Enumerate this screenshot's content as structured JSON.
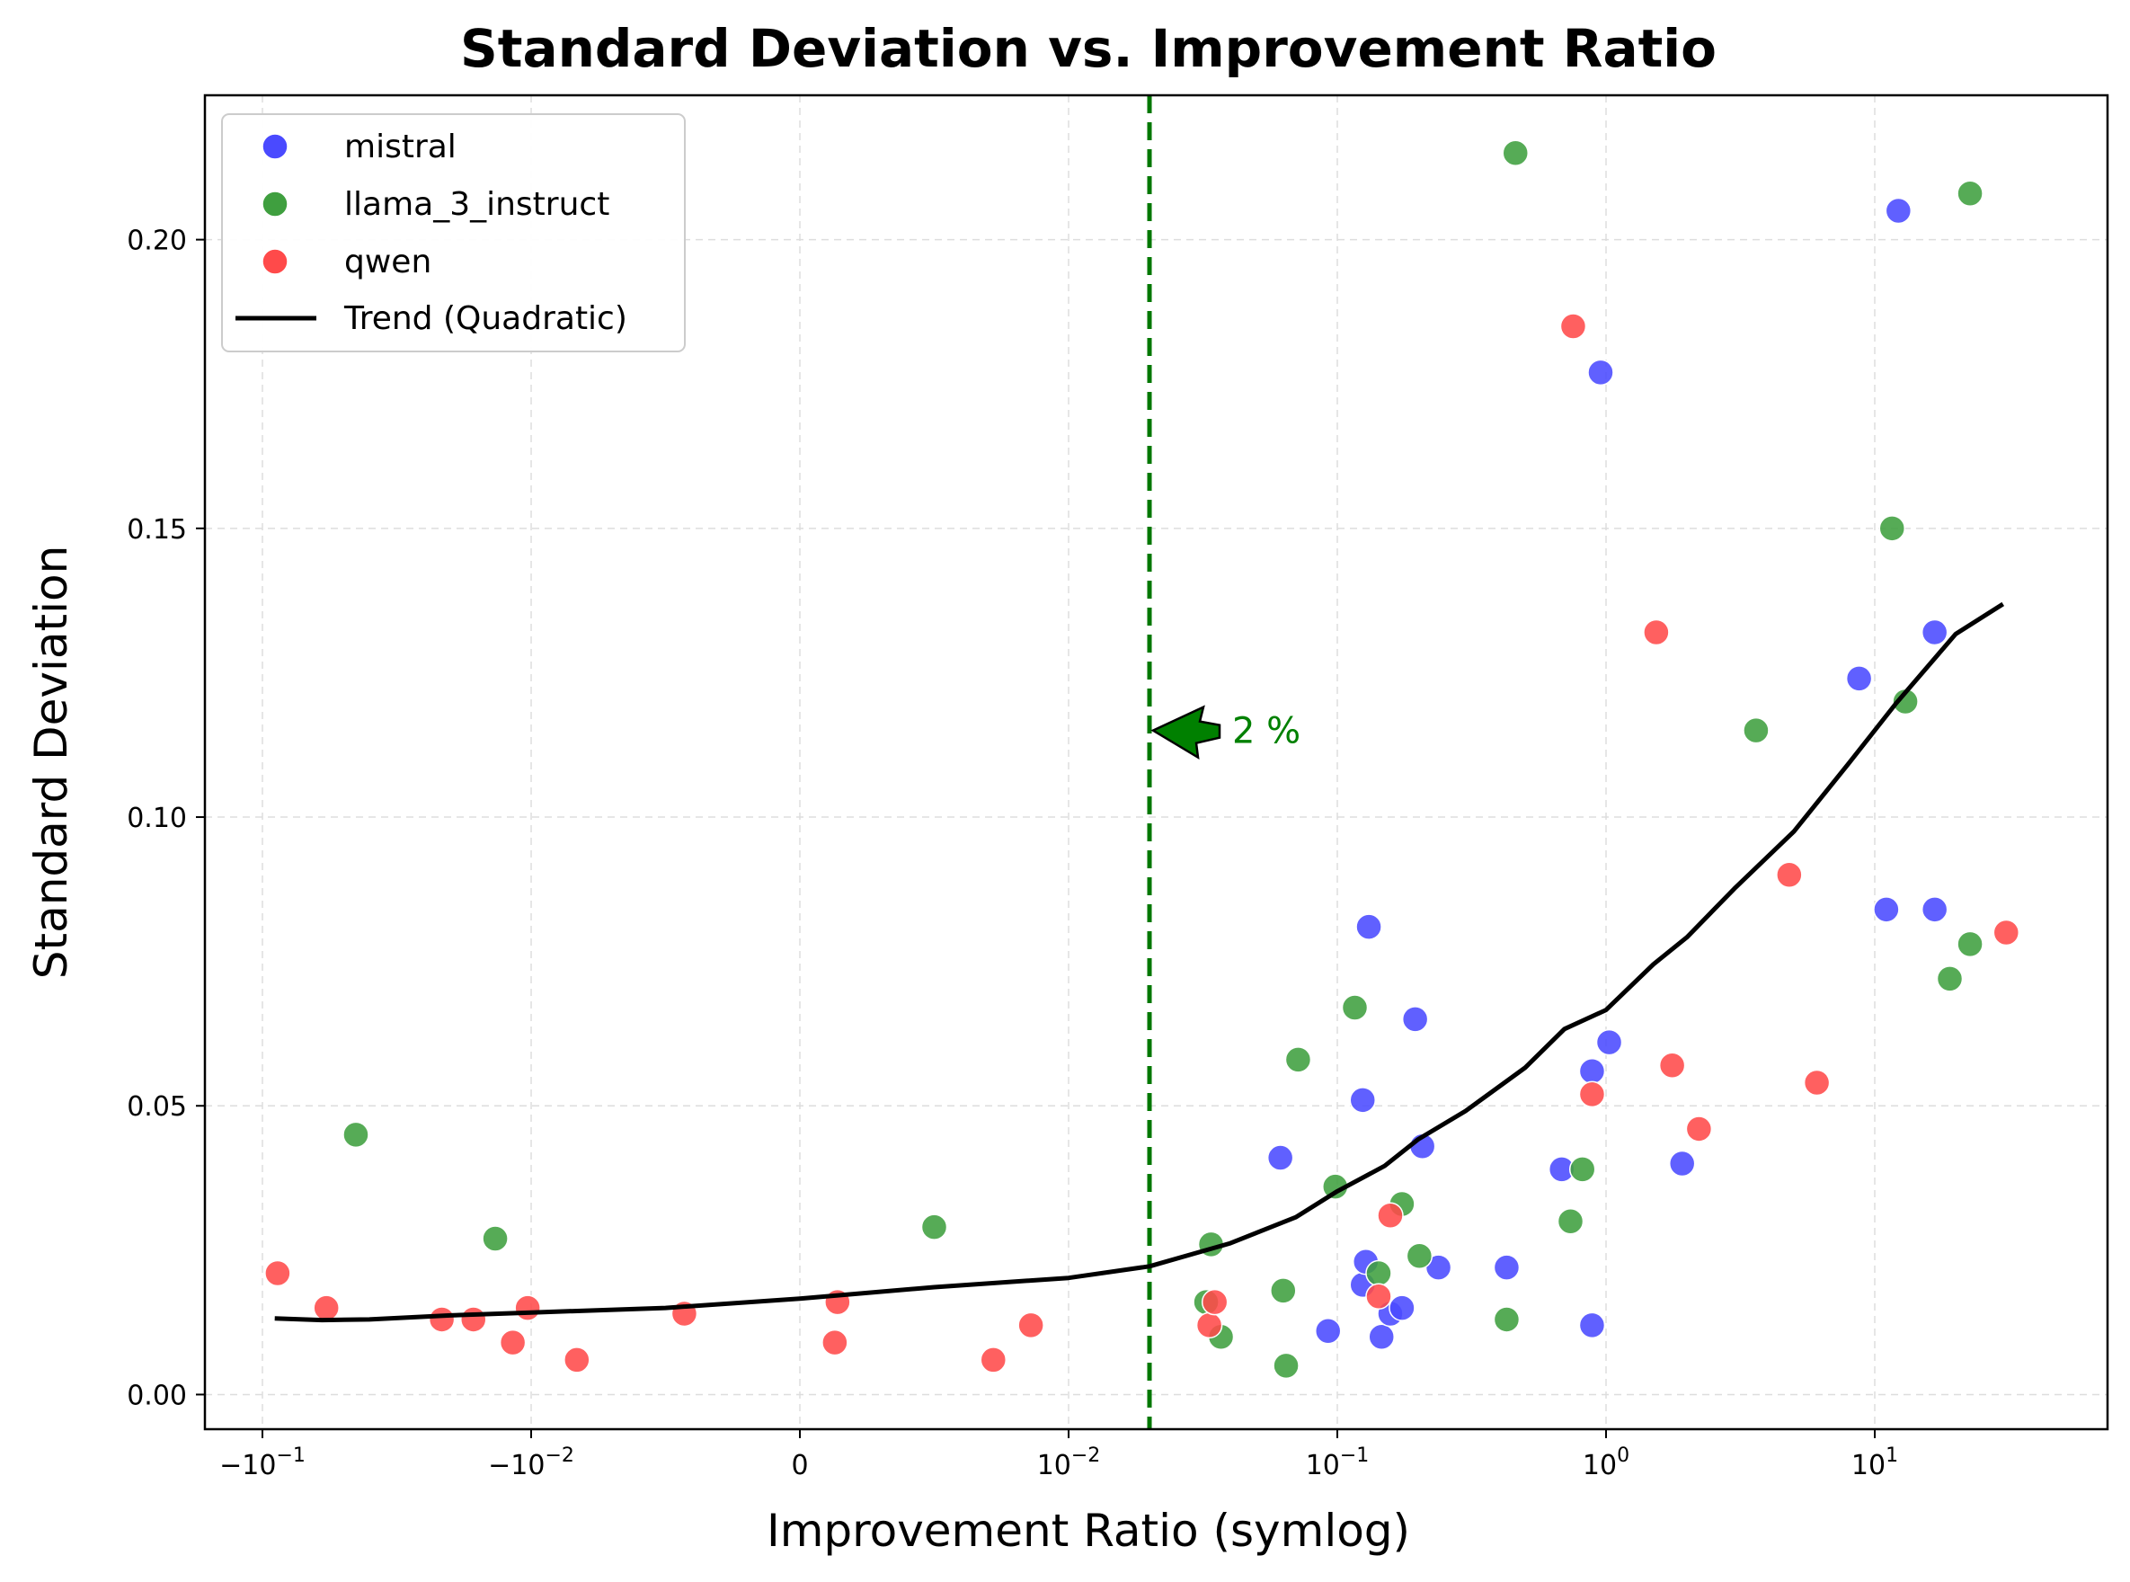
{
  "chart_data": {
    "type": "scatter",
    "title": "Standard Deviation vs. Improvement Ratio",
    "xlabel": "Improvement Ratio (symlog)",
    "ylabel": "Standard Deviation",
    "x_scale": "symlog",
    "x_linthresh": 0.01,
    "xlim": [
      -0.12,
      60
    ],
    "ylim": [
      -0.006,
      0.225
    ],
    "grid": true,
    "legend_position": "top-left",
    "x_ticks": [
      {
        "value": -0.1,
        "base": "−10",
        "exp": "−1"
      },
      {
        "value": -0.01,
        "base": "−10",
        "exp": "−2"
      },
      {
        "value": 0,
        "base": "0",
        "exp": ""
      },
      {
        "value": 0.01,
        "base": "10",
        "exp": "−2"
      },
      {
        "value": 0.1,
        "base": "10",
        "exp": "−1"
      },
      {
        "value": 1,
        "base": "10",
        "exp": "0"
      },
      {
        "value": 10,
        "base": "10",
        "exp": "1"
      }
    ],
    "y_ticks": [
      {
        "value": 0.0,
        "label": "0.00"
      },
      {
        "value": 0.05,
        "label": "0.05"
      },
      {
        "value": 0.1,
        "label": "0.10"
      },
      {
        "value": 0.15,
        "label": "0.15"
      },
      {
        "value": 0.2,
        "label": "0.20"
      }
    ],
    "series": [
      {
        "name": "mistral",
        "color": "#4a4aff",
        "points": [
          [
            0.0614,
            0.041
          ],
          [
            0.0924,
            0.011
          ],
          [
            0.1243,
            0.051
          ],
          [
            0.1243,
            0.019
          ],
          [
            0.1277,
            0.023
          ],
          [
            0.131,
            0.081
          ],
          [
            0.1461,
            0.01
          ],
          [
            0.1575,
            0.014
          ],
          [
            0.174,
            0.015
          ],
          [
            0.1949,
            0.065
          ],
          [
            0.2073,
            0.043
          ],
          [
            0.2379,
            0.022
          ],
          [
            0.4268,
            0.022
          ],
          [
            0.684,
            0.039
          ],
          [
            0.8871,
            0.056
          ],
          [
            0.8871,
            0.012
          ],
          [
            0.9548,
            0.177
          ],
          [
            1.0276,
            0.061
          ],
          [
            1.92,
            0.04
          ],
          [
            8.746,
            0.124
          ],
          [
            11.043,
            0.084
          ],
          [
            12.248,
            0.205
          ],
          [
            16.71,
            0.132
          ],
          [
            16.71,
            0.084
          ]
        ]
      },
      {
        "name": "llama_3_instruct",
        "color": "#3f9f3f",
        "points": [
          [
            -0.0449,
            0.045
          ],
          [
            -0.0136,
            0.027
          ],
          [
            0.005,
            0.029
          ],
          [
            0.0325,
            0.016
          ],
          [
            0.0339,
            0.026
          ],
          [
            0.0369,
            0.01
          ],
          [
            0.0629,
            0.018
          ],
          [
            0.0645,
            0.005
          ],
          [
            0.0715,
            0.058
          ],
          [
            0.0983,
            0.036
          ],
          [
            0.1162,
            0.067
          ],
          [
            0.1425,
            0.021
          ],
          [
            0.174,
            0.033
          ],
          [
            0.2021,
            0.024
          ],
          [
            0.4268,
            0.013
          ],
          [
            0.4603,
            0.215
          ],
          [
            0.7377,
            0.03
          ],
          [
            0.8168,
            0.039
          ],
          [
            3.617,
            0.115
          ],
          [
            11.599,
            0.15
          ],
          [
            13.003,
            0.12
          ],
          [
            19.022,
            0.072
          ],
          [
            22.633,
            0.078
          ],
          [
            22.633,
            0.208
          ]
        ]
      },
      {
        "name": "qwen",
        "color": "#ff4a4a",
        "points": [
          [
            -0.0878,
            0.021
          ],
          [
            -0.0578,
            0.015
          ],
          [
            -0.0215,
            0.013
          ],
          [
            -0.0164,
            0.013
          ],
          [
            -0.0117,
            0.009
          ],
          [
            -0.0103,
            0.015
          ],
          [
            -0.0083,
            0.006
          ],
          [
            -0.0043,
            0.014
          ],
          [
            0.0013,
            0.009
          ],
          [
            0.0014,
            0.016
          ],
          [
            0.0072,
            0.006
          ],
          [
            0.0086,
            0.012
          ],
          [
            0.0334,
            0.012
          ],
          [
            0.035,
            0.016
          ],
          [
            0.1425,
            0.017
          ],
          [
            0.1575,
            0.031
          ],
          [
            0.7547,
            0.185
          ],
          [
            0.8871,
            0.052
          ],
          [
            1.538,
            0.132
          ],
          [
            1.763,
            0.057
          ],
          [
            2.217,
            0.046
          ],
          [
            4.806,
            0.09
          ],
          [
            6.09,
            0.054
          ],
          [
            30.85,
            0.08
          ]
        ]
      }
    ],
    "trend": {
      "name": "Trend (Quadratic)",
      "color": "#000000",
      "points": [
        [
          -0.09,
          0.0132
        ],
        [
          -0.06,
          0.0129
        ],
        [
          -0.04,
          0.013
        ],
        [
          -0.02,
          0.0137
        ],
        [
          -0.01,
          0.0142
        ],
        [
          -0.005,
          0.015
        ],
        [
          0,
          0.0166
        ],
        [
          0.005,
          0.0186
        ],
        [
          0.01,
          0.0202
        ],
        [
          0.02,
          0.0222
        ],
        [
          0.04,
          0.0262
        ],
        [
          0.07,
          0.0307
        ],
        [
          0.1,
          0.0352
        ],
        [
          0.15,
          0.0396
        ],
        [
          0.2,
          0.0442
        ],
        [
          0.3,
          0.0491
        ],
        [
          0.5,
          0.0566
        ],
        [
          0.7,
          0.0633
        ],
        [
          1.0,
          0.0666
        ],
        [
          1.5,
          0.0745
        ],
        [
          2.0,
          0.0792
        ],
        [
          3.0,
          0.0876
        ],
        [
          5.0,
          0.0975
        ],
        [
          8.0,
          0.1093
        ],
        [
          12.0,
          0.1197
        ],
        [
          20.0,
          0.1317
        ],
        [
          30.0,
          0.1369
        ]
      ]
    },
    "vline": {
      "x": 0.02,
      "color": "#007700"
    },
    "annotation": {
      "text": "2 %",
      "x": 0.02,
      "y": 0.115,
      "color": "#008000"
    }
  }
}
